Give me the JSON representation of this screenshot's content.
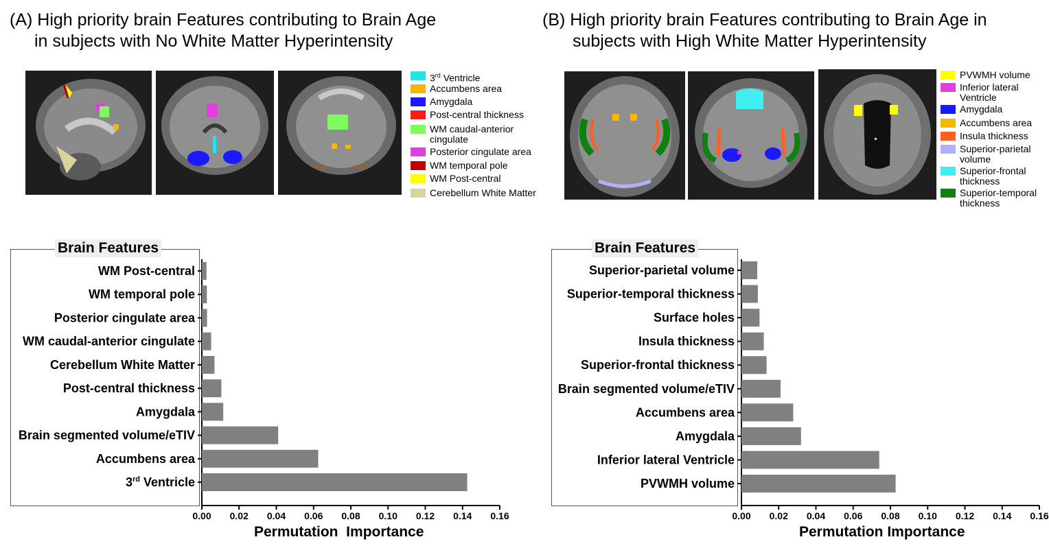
{
  "panel_a": {
    "title_line1": "(A) High priority brain Features contributing to Brain Age",
    "title_line2": "in subjects with No White Matter Hyperintensity",
    "legend": [
      {
        "label": "3rd Ventricle",
        "base": "3",
        "sup": "rd",
        "rest": " Ventricle",
        "color": "#22e4e4"
      },
      {
        "label": "Accumbens area",
        "color": "#f5b800"
      },
      {
        "label": "Amygdala",
        "color": "#1a1aff"
      },
      {
        "label": "Post-central thickness",
        "color": "#ff1a1a"
      },
      {
        "label": "WM caudal-anterior\ncingulate",
        "color": "#7cfc5c"
      },
      {
        "label": "Posterior cingulate area",
        "color": "#e040e0"
      },
      {
        "label": "WM temporal pole",
        "color": "#c00000"
      },
      {
        "label": "WM Post-central",
        "color": "#ffff00"
      },
      {
        "label": "Cerebellum White Matter",
        "color": "#d8d4a0"
      }
    ],
    "features_title": "Brain Features",
    "xlabel": "Permutation  Importance"
  },
  "panel_b": {
    "title_line1": "(B) High priority brain Features contributing to Brain Age in",
    "title_line2": "subjects with High White Matter Hyperintensity",
    "legend": [
      {
        "label": "PVWMH volume",
        "color": "#ffff00"
      },
      {
        "label": "Inferior lateral\nVentricle",
        "color": "#e040e0"
      },
      {
        "label": "Amygdala",
        "color": "#1a1aff"
      },
      {
        "label": "Accumbens area",
        "color": "#f5b800"
      },
      {
        "label": "Insula thickness",
        "color": "#ff6020"
      },
      {
        "label": "Superior-parietal\nvolume",
        "color": "#b0b0ff"
      },
      {
        "label": "Superior-frontal\nthickness",
        "color": "#40f0f0"
      },
      {
        "label": "Superior-temporal\nthickness",
        "color": "#108010"
      }
    ],
    "features_title": "Brain Features",
    "xlabel": "Permutation Importance"
  },
  "chart_data": [
    {
      "type": "bar",
      "orientation": "horizontal",
      "categories": [
        "WM Post-central",
        "WM temporal pole",
        "Posterior cingulate area",
        "WM caudal-anterior cingulate",
        "Cerebellum White Matter",
        "Post-central thickness",
        "Amygdala",
        "Brain segmented volume/eTIV",
        "Accumbens area",
        "3rd Ventricle"
      ],
      "values": [
        0.0025,
        0.0027,
        0.0028,
        0.005,
        0.0068,
        0.0105,
        0.0115,
        0.041,
        0.0625,
        0.1425
      ],
      "xlabel": "Permutation  Importance",
      "ylabel": "Brain Features",
      "xlim": [
        0,
        0.16
      ],
      "xticks": [
        "0.00",
        "0.02",
        "0.04",
        "0.06",
        "0.08",
        "0.10",
        "0.12",
        "0.14",
        "0.16"
      ],
      "bar_color": "#808080"
    },
    {
      "type": "bar",
      "orientation": "horizontal",
      "categories": [
        "Superior-parietal volume",
        "Superior-temporal thickness",
        "Surface holes",
        "Insula thickness",
        "Superior-frontal thickness",
        "Brain segmented volume/eTIV",
        "Accumbens area",
        "Amygdala",
        "Inferior lateral Ventricle",
        "PVWMH volume"
      ],
      "values": [
        0.0085,
        0.0088,
        0.0097,
        0.012,
        0.0135,
        0.021,
        0.0278,
        0.032,
        0.074,
        0.0828
      ],
      "xlabel": "Permutation Importance",
      "ylabel": "Brain Features",
      "xlim": [
        0,
        0.16
      ],
      "xticks": [
        "0.00",
        "0.02",
        "0.04",
        "0.06",
        "0.08",
        "0.10",
        "0.12",
        "0.14",
        "0.16"
      ],
      "bar_color": "#808080"
    }
  ]
}
